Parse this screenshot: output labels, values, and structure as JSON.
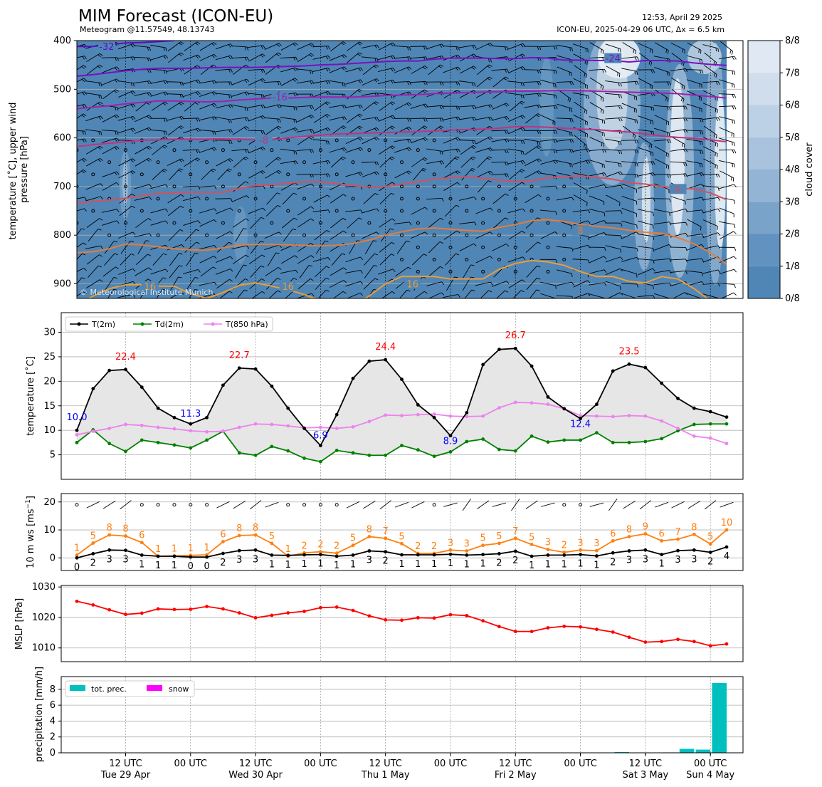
{
  "header": {
    "title": "MIM Forecast (ICON-EU)",
    "subtitle": "Meteogram @11.57549, 48.13743",
    "timestamp": "12:53, April 29 2025",
    "run_info": "ICON-EU, 2025-04-29 06 UTC, Δx = 6.5 km",
    "copyright": "© Meteorological Institute Munich"
  },
  "colors": {
    "t2m": "#000000",
    "td2m": "#008000",
    "t850": "#ee82ee",
    "ws": "#000000",
    "gust": "#ff7f0e",
    "mslp": "#ff0000",
    "precip": "#00bfbf",
    "snow": "#ff00ff",
    "label_max": "#ff0000",
    "label_min": "#0000ff",
    "cloud_base": "#4f86b6"
  },
  "time_axis": {
    "ticks": [
      {
        "main": "12 UTC",
        "sub": "Tue 29 Apr"
      },
      {
        "main": "00 UTC",
        "sub": ""
      },
      {
        "main": "12 UTC",
        "sub": "Wed 30 Apr"
      },
      {
        "main": "00 UTC",
        "sub": ""
      },
      {
        "main": "12 UTC",
        "sub": "Thu 1 May"
      },
      {
        "main": "00 UTC",
        "sub": ""
      },
      {
        "main": "12 UTC",
        "sub": "Fri 2 May"
      },
      {
        "main": "00 UTC",
        "sub": ""
      },
      {
        "main": "12 UTC",
        "sub": "Sat 3 May"
      },
      {
        "main": "00 UTC",
        "sub": "Sun 4 May"
      }
    ]
  },
  "chart_data": [
    {
      "type": "heatmap",
      "panel": "upper air",
      "ylabel": "temperature [$^\\circ$C], upper wind\npressure [hPa]",
      "ylabel_lines": [
        "temperature [˚C], upper wind",
        "pressure [hPa]"
      ],
      "y_ticks": [
        "400",
        "500",
        "600",
        "700",
        "800",
        "900"
      ],
      "ylim": [
        930,
        400
      ],
      "colorbar_label": "cloud cover",
      "colorbar_ticks": [
        "0/8",
        "1/8",
        "2/8",
        "3/8",
        "4/8",
        "5/8",
        "6/8",
        "7/8",
        "8/8"
      ],
      "contour_labels": [
        "-32",
        "-24",
        "-16",
        "-8",
        "0",
        "8",
        "16",
        "16",
        "16"
      ],
      "isotherms": [
        {
          "label": "-32",
          "color": "#5e0bc2",
          "p": [
            412,
            412,
            408,
            405,
            404,
            402,
            400
          ]
        },
        {
          "label": "-24",
          "color": "#7a10c0",
          "p": [
            473,
            470,
            466,
            462,
            459,
            457,
            457,
            457,
            456,
            455,
            455,
            455,
            454,
            453,
            452,
            450,
            449,
            447,
            445,
            443,
            442,
            442,
            438,
            436,
            436,
            436,
            437,
            437,
            435,
            436,
            440,
            440,
            441,
            441,
            444,
            441,
            441,
            442,
            446,
            449,
            451
          ]
        },
        {
          "label": "-16",
          "color": "#a020b0",
          "p": [
            540,
            537,
            534,
            530,
            527,
            524,
            524,
            525,
            526,
            525,
            522,
            520,
            518,
            518,
            517,
            516,
            516,
            516,
            515,
            513,
            512,
            511,
            509,
            508,
            507,
            506,
            505,
            504,
            504,
            503,
            502,
            503,
            504,
            505,
            506,
            507,
            508,
            509,
            512,
            515,
            518
          ]
        },
        {
          "label": "-8",
          "color": "#c2327f",
          "p": [
            618,
            614,
            611,
            608,
            605,
            604,
            603,
            603,
            603,
            602,
            603,
            604,
            604,
            600,
            597,
            594,
            592,
            591,
            590,
            589,
            588,
            587,
            586,
            584,
            583,
            582,
            580,
            577,
            577,
            578,
            580,
            582,
            583,
            586,
            588,
            592,
            596,
            599,
            601,
            604,
            608
          ]
        },
        {
          "label": "0",
          "color": "#d64f5e",
          "p": [
            735,
            731,
            728,
            724,
            719,
            714,
            713,
            712,
            712,
            712,
            704,
            698,
            696,
            693,
            690,
            690,
            694,
            698,
            701,
            700,
            695,
            690,
            685,
            682,
            680,
            683,
            687,
            690,
            688,
            682,
            680,
            678,
            681,
            685,
            692,
            695,
            700,
            703,
            705,
            713,
            727
          ]
        },
        {
          "label": "8",
          "color": "#e57c3c",
          "p": [
            836,
            834,
            828,
            818,
            820,
            824,
            828,
            830,
            831,
            826,
            820,
            819,
            819,
            820,
            821,
            822,
            821,
            817,
            810,
            800,
            793,
            787,
            785,
            788,
            790,
            792,
            784,
            778,
            770,
            768,
            772,
            778,
            782,
            785,
            790,
            794,
            796,
            805,
            818,
            836,
            860
          ]
        },
        {
          "label": "16",
          "color": "#eb9d3a",
          "p": [
            945,
            925,
            910,
            902,
            902,
            905,
            905,
            920,
            930,
            918,
            903,
            898,
            905,
            912,
            922,
            935,
            945,
            945,
            925,
            900,
            885,
            885,
            885,
            890,
            890,
            890,
            870,
            858,
            852,
            855,
            862,
            875,
            885,
            885,
            895,
            898,
            885,
            890,
            910,
            935,
            960
          ]
        }
      ]
    },
    {
      "type": "line",
      "panel": "temperature",
      "ylabel": "temperature [$^\\circ$C]",
      "ylabel_text": "temperature [˚C]",
      "ylim": [
        0,
        34
      ],
      "y_ticks": [
        "5",
        "10",
        "15",
        "20",
        "25",
        "30"
      ],
      "x_hours": [
        0,
        6,
        12,
        18,
        24,
        30,
        36,
        42,
        48,
        54,
        60,
        66,
        72,
        78,
        84,
        90,
        96,
        102,
        108,
        114,
        120,
        126,
        132,
        138,
        144,
        150,
        156,
        162,
        168,
        174,
        180,
        186,
        192,
        198,
        204,
        210,
        216,
        222,
        228,
        234,
        240
      ],
      "series": [
        {
          "name": "T(2m)",
          "values": [
            10.0,
            18.5,
            22.2,
            22.4,
            18.8,
            14.5,
            12.6,
            11.3,
            12.6,
            19.2,
            22.7,
            22.5,
            19.0,
            14.5,
            10.4,
            6.9,
            13.2,
            20.6,
            24.1,
            24.4,
            20.4,
            15.2,
            12.6,
            8.9,
            13.6,
            23.4,
            26.5,
            26.7,
            23.1,
            16.8,
            14.4,
            12.4,
            15.3,
            22.1,
            23.5,
            22.8,
            19.6,
            16.5,
            14.5,
            13.8,
            12.7
          ]
        },
        {
          "name": "Td(2m)",
          "values": [
            7.5,
            10.1,
            7.3,
            5.7,
            8.0,
            7.5,
            7.0,
            6.4,
            8.0,
            9.8,
            5.4,
            4.9,
            6.7,
            5.8,
            4.3,
            3.6,
            5.9,
            5.4,
            4.9,
            4.9,
            6.9,
            6.0,
            4.7,
            5.6,
            7.7,
            8.2,
            6.1,
            5.8,
            8.8,
            7.6,
            8.0,
            8.0,
            9.5,
            7.5,
            7.5,
            7.7,
            8.3,
            9.9,
            11.2,
            11.3,
            11.3
          ]
        },
        {
          "name": "T(850 hPa)",
          "values": [
            9.1,
            9.8,
            10.4,
            11.2,
            11.0,
            10.6,
            10.3,
            9.9,
            9.7,
            9.8,
            10.6,
            11.3,
            11.2,
            10.9,
            10.5,
            10.6,
            10.4,
            10.7,
            11.8,
            13.1,
            13.0,
            13.2,
            13.3,
            12.9,
            12.8,
            12.9,
            14.6,
            15.7,
            15.6,
            15.3,
            14.4,
            13.0,
            12.9,
            12.8,
            13.0,
            12.9,
            11.9,
            10.4,
            8.8,
            8.4,
            7.3
          ]
        }
      ],
      "annotations": [
        {
          "text": "22.4",
          "x": 18,
          "y": 22.4,
          "kind": "max"
        },
        {
          "text": "22.7",
          "x": 60,
          "y": 22.7,
          "kind": "max"
        },
        {
          "text": "24.4",
          "x": 114,
          "y": 24.4,
          "kind": "max"
        },
        {
          "text": "26.7",
          "x": 162,
          "y": 26.7,
          "kind": "max"
        },
        {
          "text": "23.5",
          "x": 204,
          "y": 23.5,
          "kind": "max"
        },
        {
          "text": "10.0",
          "x": 0,
          "y": 10.0,
          "kind": "min"
        },
        {
          "text": "11.3",
          "x": 42,
          "y": 11.3,
          "kind": "min"
        },
        {
          "text": "6.9",
          "x": 90,
          "y": 6.9,
          "kind": "min"
        },
        {
          "text": "8.9",
          "x": 138,
          "y": 8.9,
          "kind": "min"
        },
        {
          "text": "12.4",
          "x": 186,
          "y": 12.4,
          "kind": "min"
        }
      ],
      "legend_position": "top-left"
    },
    {
      "type": "line",
      "panel": "wind",
      "ylabel": "10 m ws [ms$^{-1}$]",
      "ylabel_main": "10 m ws [ms",
      "ylabel_sup": "−1",
      "ylabel_end": "]",
      "ylim": [
        -4.5,
        23
      ],
      "y_ticks": [
        "0",
        "10",
        "20"
      ],
      "series": [
        {
          "name": "",
          "values": [
            0,
            1.5,
            2.8,
            2.7,
            1.0,
            0.6,
            0.6,
            0.3,
            0.3,
            1.6,
            2.6,
            2.8,
            1.0,
            0.9,
            1.1,
            1.2,
            0.6,
            1.0,
            2.5,
            2.2,
            1.1,
            1.1,
            1.1,
            1.3,
            1.0,
            1.2,
            1.5,
            2.4,
            0.6,
            1.0,
            1.0,
            1.2,
            0.7,
            1.8,
            2.5,
            2.8,
            1.2,
            2.6,
            2.8,
            2.0,
            3.9
          ]
        },
        {
          "name": "",
          "values": [
            1.0,
            5.3,
            8.2,
            7.8,
            5.5,
            0.6,
            0.7,
            0.9,
            1.1,
            5.8,
            8.0,
            8.2,
            5.2,
            0.6,
            1.8,
            2.2,
            1.7,
            4.5,
            7.6,
            7.0,
            5.1,
            1.6,
            1.6,
            2.8,
            2.5,
            4.5,
            5.2,
            7.0,
            4.8,
            3.0,
            2.0,
            2.8,
            2.6,
            6.1,
            7.6,
            8.6,
            6.1,
            6.7,
            8.4,
            5.0,
            10.0
          ]
        }
      ],
      "ws_labels": [
        "0",
        "2",
        "3",
        "3",
        "1",
        "1",
        "1",
        "0",
        "0",
        "2",
        "3",
        "3",
        "1",
        "1",
        "1",
        "1",
        "1",
        "1",
        "3",
        "2",
        "1",
        "1",
        "1",
        "1",
        "1",
        "1",
        "2",
        "2",
        "1",
        "1",
        "1",
        "1",
        "1",
        "2",
        "3",
        "3",
        "1",
        "3",
        "3",
        "2",
        "4"
      ],
      "gust_labels": [
        "1",
        "5",
        "8",
        "8",
        "6",
        "1",
        "1",
        "1",
        "1",
        "6",
        "8",
        "8",
        "5",
        "1",
        "2",
        "2",
        "2",
        "5",
        "8",
        "7",
        "5",
        "2",
        "2",
        "3",
        "3",
        "5",
        "5",
        "7",
        "5",
        "3",
        "2",
        "3",
        "3",
        "6",
        "8",
        "9",
        "6",
        "7",
        "8",
        "5",
        "10"
      ]
    },
    {
      "type": "line",
      "panel": "pressure",
      "ylabel": "MSLP [hPa]",
      "ylim": [
        1005.5,
        1030.5
      ],
      "y_ticks": [
        "1010",
        "1020",
        "1030"
      ],
      "series": [
        {
          "name": "",
          "values": [
            1025.3,
            1024.1,
            1022.5,
            1021.0,
            1021.4,
            1022.8,
            1022.6,
            1022.7,
            1023.6,
            1022.8,
            1021.5,
            1019.9,
            1020.7,
            1021.5,
            1022.0,
            1023.2,
            1023.4,
            1022.3,
            1020.5,
            1019.2,
            1019.1,
            1019.9,
            1019.8,
            1020.9,
            1020.6,
            1018.9,
            1017.0,
            1015.4,
            1015.4,
            1016.6,
            1017.1,
            1016.9,
            1016.1,
            1015.2,
            1013.5,
            1011.9,
            1012.1,
            1012.8,
            1012.1,
            1010.7,
            1011.3
          ]
        }
      ]
    },
    {
      "type": "bar",
      "panel": "precipitation",
      "ylabel": "precipitation [mm/h]",
      "ylim": [
        0,
        9.6
      ],
      "y_ticks": [
        "0",
        "2",
        "4",
        "6",
        "8"
      ],
      "series": [
        {
          "name": "tot. prec.",
          "values": [
            0,
            0,
            0,
            0,
            0,
            0,
            0,
            0,
            0,
            0,
            0,
            0,
            0,
            0,
            0,
            0,
            0,
            0,
            0,
            0,
            0,
            0,
            0,
            0,
            0,
            0,
            0,
            0,
            0,
            0,
            0,
            0,
            0,
            0,
            0.1,
            0,
            0,
            0.05,
            0.5,
            0.4,
            8.8
          ]
        },
        {
          "name": "snow",
          "values": [
            0,
            0,
            0,
            0,
            0,
            0,
            0,
            0,
            0,
            0,
            0,
            0,
            0,
            0,
            0,
            0,
            0,
            0,
            0,
            0,
            0,
            0,
            0,
            0,
            0,
            0,
            0,
            0,
            0,
            0,
            0,
            0,
            0,
            0,
            0,
            0,
            0,
            0,
            0,
            0,
            0
          ]
        }
      ],
      "legend_position": "top-left"
    }
  ]
}
